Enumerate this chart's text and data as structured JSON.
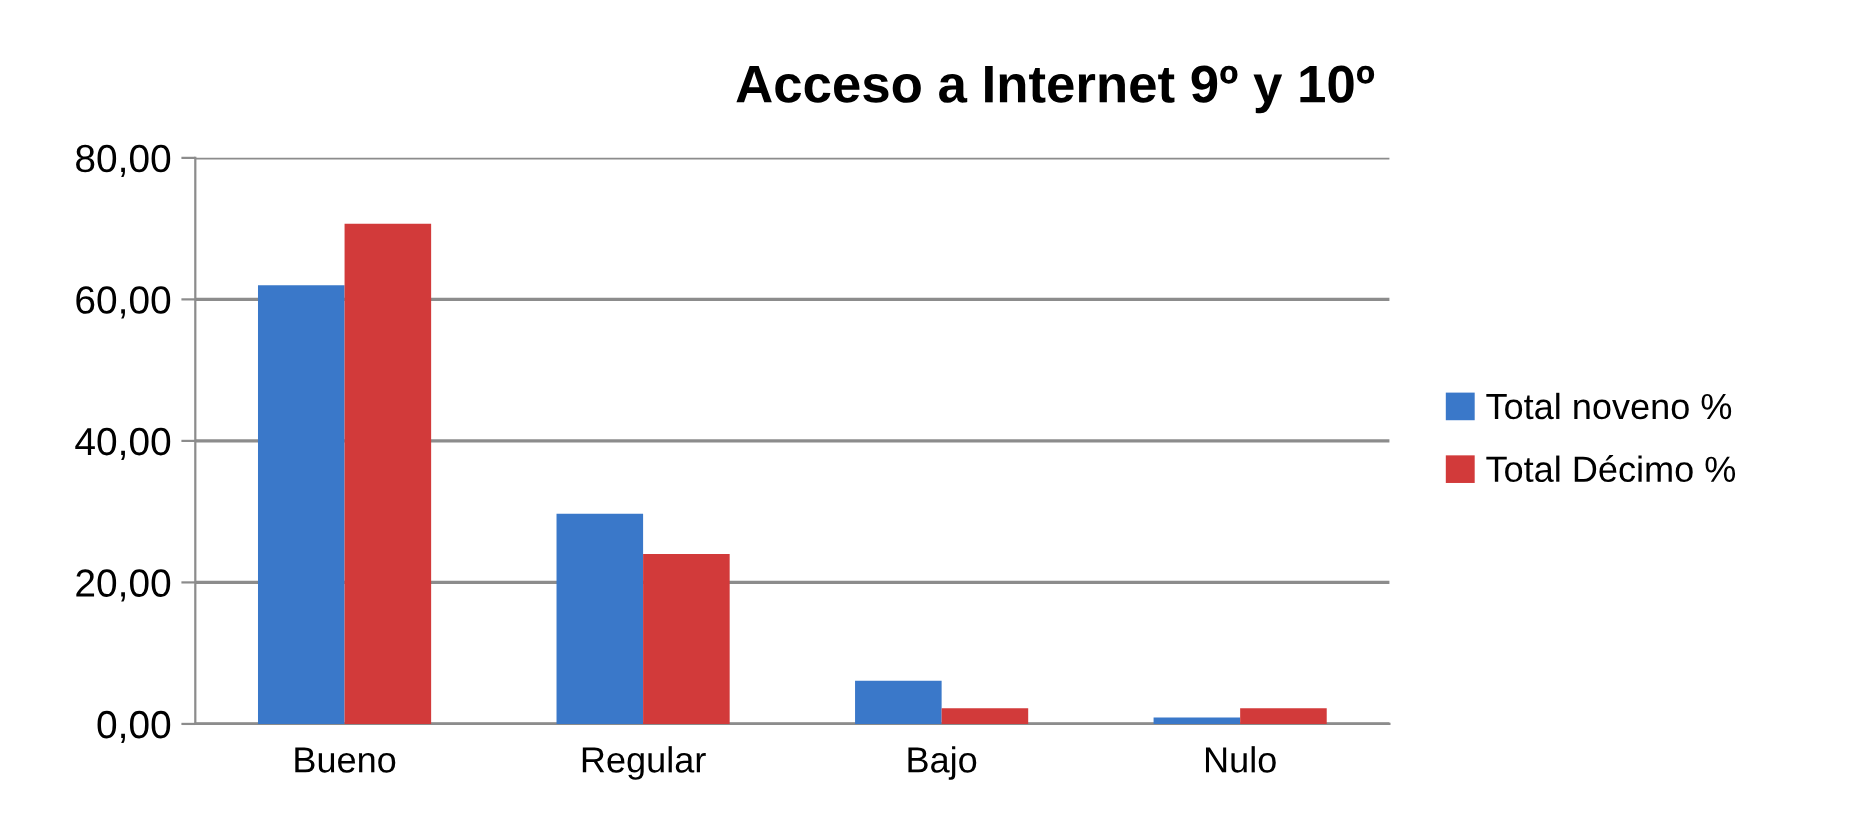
{
  "chart_data": {
    "type": "bar",
    "title": "Acceso a Internet 9º y 10º",
    "categories": [
      "Bueno",
      "Regular",
      "Bajo",
      "Nulo"
    ],
    "series": [
      {
        "name": "Total noveno %",
        "color": "#3a78c9",
        "values": [
          62.0,
          29.7,
          6.1,
          0.9
        ]
      },
      {
        "name": "Total Décimo %",
        "color": "#d23a3a",
        "values": [
          70.7,
          24.0,
          2.2,
          2.2
        ]
      }
    ],
    "ylim": [
      0,
      80
    ],
    "yticks": [
      {
        "value": 0,
        "label": "0,00"
      },
      {
        "value": 20,
        "label": "20,00"
      },
      {
        "value": 40,
        "label": "40,00"
      },
      {
        "value": 60,
        "label": "60,00"
      },
      {
        "value": 80,
        "label": "80,00"
      }
    ],
    "grid": "y",
    "legend": "right"
  }
}
